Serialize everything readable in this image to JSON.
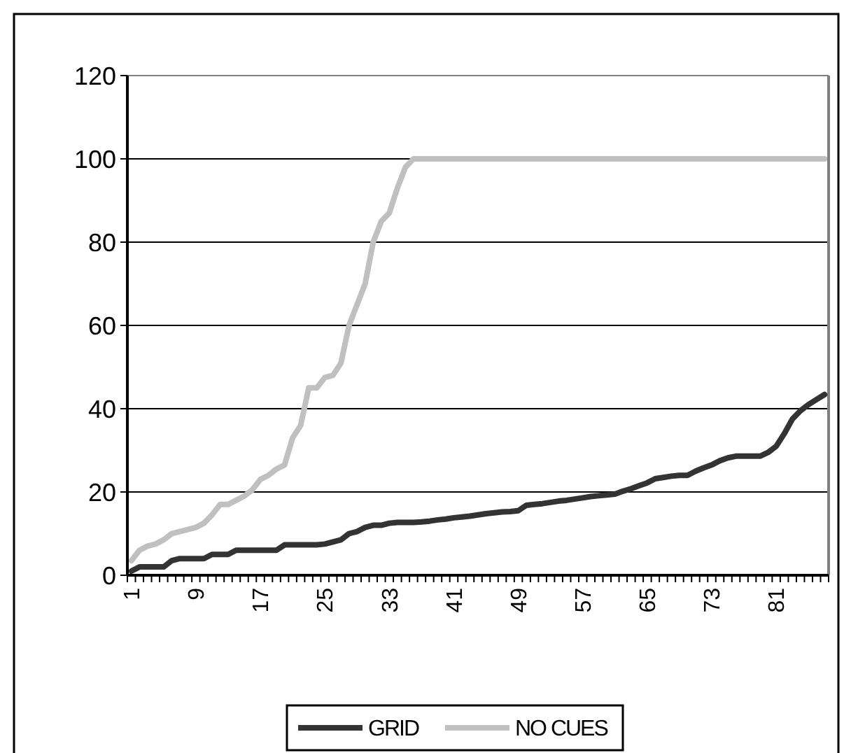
{
  "chart_data": {
    "type": "line",
    "categories": [
      "1",
      null,
      null,
      null,
      null,
      null,
      null,
      null,
      "9",
      null,
      null,
      null,
      null,
      null,
      null,
      null,
      "17",
      null,
      null,
      null,
      null,
      null,
      null,
      null,
      "25",
      null,
      null,
      null,
      null,
      null,
      null,
      null,
      "33",
      null,
      null,
      null,
      null,
      null,
      null,
      null,
      "41",
      null,
      null,
      null,
      null,
      null,
      null,
      null,
      "49",
      null,
      null,
      null,
      null,
      null,
      null,
      null,
      "57",
      null,
      null,
      null,
      null,
      null,
      null,
      null,
      "65",
      null,
      null,
      null,
      null,
      null,
      null,
      null,
      "73",
      null,
      null,
      null,
      null,
      null,
      null,
      null,
      "81",
      null,
      null,
      null,
      null,
      null,
      null
    ],
    "series": [
      {
        "name": "GRID",
        "color": "#333333",
        "values": [
          1,
          2,
          2,
          2,
          2,
          3.5,
          4,
          4,
          4,
          4,
          5,
          5,
          5,
          6,
          6,
          6,
          6,
          6,
          6,
          7.3,
          7.3,
          7.3,
          7.3,
          7.3,
          7.5,
          8,
          8.5,
          10,
          10.5,
          11.5,
          12,
          12,
          12.5,
          12.7,
          12.7,
          12.7,
          12.8,
          13,
          13.3,
          13.5,
          13.8,
          14,
          14.2,
          14.5,
          14.8,
          15,
          15.2,
          15.3,
          15.5,
          16.8,
          17,
          17.2,
          17.5,
          17.8,
          18,
          18.3,
          18.6,
          18.9,
          19.1,
          19.3,
          19.5,
          20.2,
          20.8,
          21.5,
          22.2,
          23.2,
          23.5,
          23.8,
          24,
          24,
          25,
          25.8,
          26.5,
          27.5,
          28.2,
          28.6,
          28.6,
          28.6,
          28.6,
          29.5,
          31,
          34,
          37.5,
          39.5,
          41,
          42.2,
          43.4
        ]
      },
      {
        "name": "NO CUES",
        "color": "#c0c0c0",
        "values": [
          3.5,
          6,
          7,
          7.5,
          8.5,
          10,
          10.5,
          11,
          11.5,
          12.5,
          14.5,
          17,
          17,
          18,
          19,
          20.5,
          23,
          24,
          25.5,
          26.5,
          33,
          36,
          45,
          45,
          47.5,
          48,
          51,
          60,
          65,
          70,
          80,
          85,
          87,
          93,
          98,
          100,
          100,
          100,
          100,
          100,
          100,
          100,
          100,
          100,
          100,
          100,
          100,
          100,
          100,
          100,
          100,
          100,
          100,
          100,
          100,
          100,
          100,
          100,
          100,
          100,
          100,
          100,
          100,
          100,
          100,
          100,
          100,
          100,
          100,
          100,
          100,
          100,
          100,
          100,
          100,
          100,
          100,
          100,
          100,
          100,
          100,
          100,
          100,
          100,
          100,
          100,
          100
        ]
      }
    ],
    "ylim": [
      0,
      120
    ],
    "yticks": [
      0,
      20,
      40,
      60,
      80,
      100,
      120
    ],
    "grid": "y",
    "legend": "bottom",
    "marker": "none",
    "line_style": "solid"
  }
}
